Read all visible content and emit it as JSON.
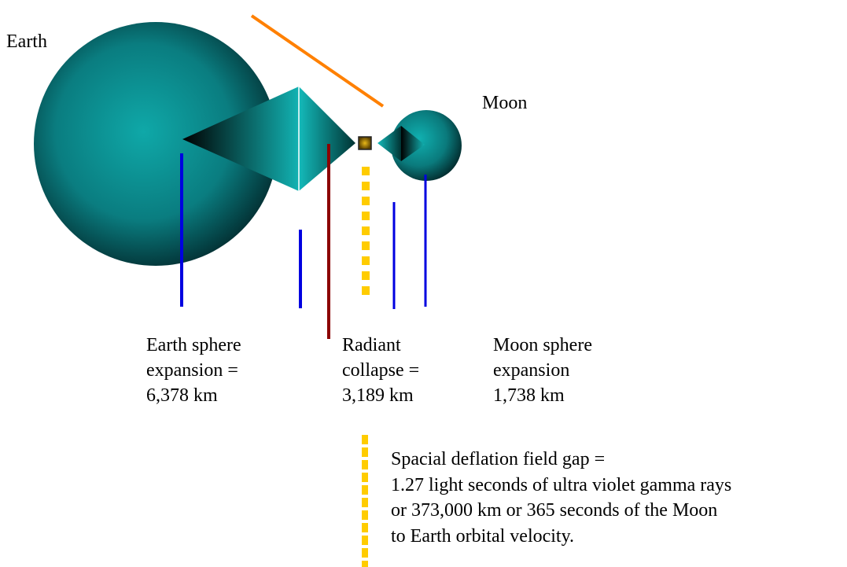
{
  "labels": {
    "earth": "Earth",
    "moon": "Moon"
  },
  "captions": [
    {
      "lines": [
        "Earth sphere",
        "expansion =",
        "6,378 km"
      ]
    },
    {
      "lines": [
        "Radiant",
        "collapse =",
        "3,189 km"
      ]
    },
    {
      "lines": [
        "Moon sphere",
        "expansion",
        "1,738 km"
      ]
    }
  ],
  "note": {
    "lines": [
      "Spacial deflation field gap =",
      "1.27 light seconds of ultra violet gamma rays",
      "or 373,000 km or 365 seconds of the Moon",
      "to Earth orbital velocity."
    ]
  }
}
